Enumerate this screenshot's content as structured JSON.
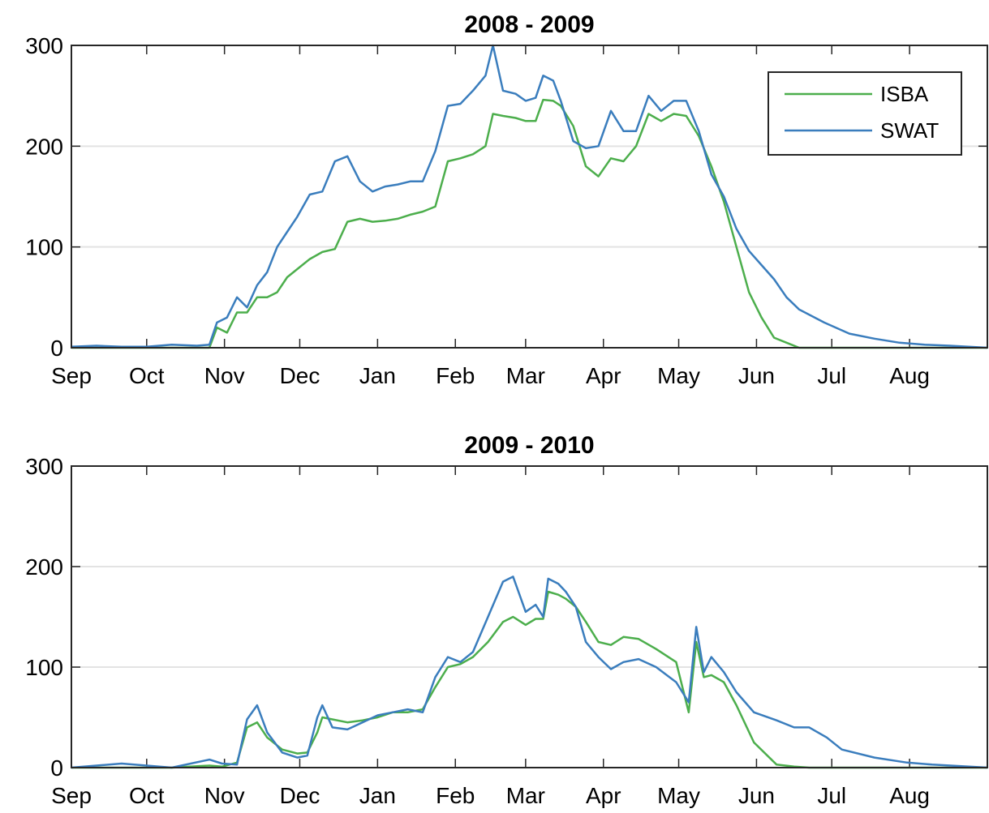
{
  "chart_data": [
    {
      "type": "line",
      "title": "2008 - 2009",
      "x": [
        0,
        10,
        20,
        30,
        40,
        50,
        55,
        58,
        62,
        66,
        70,
        74,
        78,
        82,
        86,
        90,
        95,
        100,
        105,
        110,
        115,
        120,
        125,
        130,
        135,
        140,
        145,
        150,
        155,
        160,
        165,
        168,
        172,
        177,
        181,
        185,
        188,
        192,
        195,
        200,
        205,
        210,
        215,
        220,
        225,
        230,
        235,
        240,
        245,
        250,
        255,
        260,
        265,
        270,
        275,
        280,
        285,
        290,
        300,
        310,
        320,
        330,
        340,
        350,
        365
      ],
      "xlim": [
        0,
        365
      ],
      "xticks": [
        {
          "value": 0,
          "label": "Sep"
        },
        {
          "value": 30,
          "label": "Oct"
        },
        {
          "value": 61,
          "label": "Nov"
        },
        {
          "value": 91,
          "label": "Dec"
        },
        {
          "value": 122,
          "label": "Jan"
        },
        {
          "value": 153,
          "label": "Feb"
        },
        {
          "value": 181,
          "label": "Mar"
        },
        {
          "value": 212,
          "label": "Apr"
        },
        {
          "value": 242,
          "label": "May"
        },
        {
          "value": 273,
          "label": "Jun"
        },
        {
          "value": 303,
          "label": "Jul"
        },
        {
          "value": 334,
          "label": "Aug"
        }
      ],
      "ylim": [
        0,
        300
      ],
      "yticks": [
        0,
        100,
        200,
        300
      ],
      "grid": true,
      "legend": "upper right",
      "series": [
        {
          "name": "ISBA",
          "color": "#4cae4c",
          "values": [
            0,
            0,
            0,
            0,
            0,
            0,
            0,
            20,
            15,
            35,
            35,
            50,
            50,
            55,
            70,
            78,
            88,
            95,
            98,
            125,
            128,
            125,
            126,
            128,
            132,
            135,
            140,
            185,
            188,
            192,
            200,
            232,
            230,
            228,
            225,
            225,
            246,
            245,
            240,
            220,
            180,
            170,
            188,
            185,
            200,
            232,
            225,
            232,
            230,
            210,
            180,
            145,
            100,
            55,
            30,
            10,
            5,
            0,
            0,
            0,
            0,
            0,
            0,
            0,
            0
          ]
        },
        {
          "name": "SWAT",
          "color": "#3a7dbd",
          "values": [
            1,
            2,
            1,
            1,
            3,
            2,
            3,
            25,
            30,
            50,
            40,
            62,
            75,
            100,
            115,
            130,
            152,
            155,
            185,
            190,
            165,
            155,
            160,
            162,
            165,
            165,
            195,
            240,
            242,
            255,
            270,
            300,
            255,
            252,
            245,
            248,
            270,
            265,
            245,
            205,
            198,
            200,
            235,
            215,
            215,
            250,
            235,
            245,
            245,
            215,
            172,
            150,
            118,
            96,
            82,
            68,
            50,
            38,
            25,
            14,
            9,
            5,
            3,
            2,
            0
          ]
        }
      ]
    },
    {
      "type": "line",
      "title": "2009 - 2010",
      "x": [
        0,
        20,
        40,
        55,
        60,
        66,
        70,
        74,
        78,
        84,
        90,
        94,
        98,
        100,
        104,
        110,
        116,
        122,
        128,
        134,
        140,
        145,
        150,
        155,
        160,
        166,
        172,
        176,
        181,
        185,
        188,
        190,
        194,
        197,
        201,
        205,
        210,
        215,
        220,
        226,
        233,
        241,
        246,
        249,
        252,
        255,
        260,
        265,
        272,
        281,
        288,
        294,
        301,
        307,
        320,
        333,
        343,
        365
      ],
      "xlim": [
        0,
        365
      ],
      "xticks": [
        {
          "value": 0,
          "label": "Sep"
        },
        {
          "value": 30,
          "label": "Oct"
        },
        {
          "value": 61,
          "label": "Nov"
        },
        {
          "value": 91,
          "label": "Dec"
        },
        {
          "value": 122,
          "label": "Jan"
        },
        {
          "value": 153,
          "label": "Feb"
        },
        {
          "value": 181,
          "label": "Mar"
        },
        {
          "value": 212,
          "label": "Apr"
        },
        {
          "value": 242,
          "label": "May"
        },
        {
          "value": 273,
          "label": "Jun"
        },
        {
          "value": 303,
          "label": "Jul"
        },
        {
          "value": 334,
          "label": "Aug"
        }
      ],
      "ylim": [
        0,
        300
      ],
      "yticks": [
        0,
        100,
        200,
        300
      ],
      "grid": true,
      "series": [
        {
          "name": "ISBA",
          "color": "#4cae4c",
          "values": [
            0,
            0,
            0,
            2,
            1,
            5,
            40,
            45,
            30,
            18,
            14,
            15,
            35,
            50,
            48,
            45,
            47,
            50,
            55,
            55,
            58,
            80,
            100,
            103,
            110,
            125,
            145,
            150,
            142,
            148,
            148,
            175,
            172,
            168,
            160,
            145,
            125,
            122,
            130,
            128,
            118,
            105,
            55,
            125,
            90,
            92,
            85,
            62,
            25,
            3,
            1,
            0,
            0,
            0,
            0,
            0,
            0,
            0
          ]
        },
        {
          "name": "SWAT",
          "color": "#3a7dbd",
          "values": [
            0,
            4,
            0,
            8,
            4,
            3,
            48,
            62,
            35,
            15,
            10,
            12,
            50,
            62,
            40,
            38,
            45,
            52,
            55,
            58,
            55,
            90,
            110,
            105,
            115,
            150,
            185,
            190,
            155,
            162,
            150,
            188,
            183,
            175,
            160,
            125,
            110,
            98,
            105,
            108,
            100,
            85,
            65,
            140,
            95,
            110,
            95,
            75,
            55,
            47,
            40,
            40,
            30,
            18,
            10,
            5,
            3,
            0
          ]
        }
      ]
    }
  ]
}
